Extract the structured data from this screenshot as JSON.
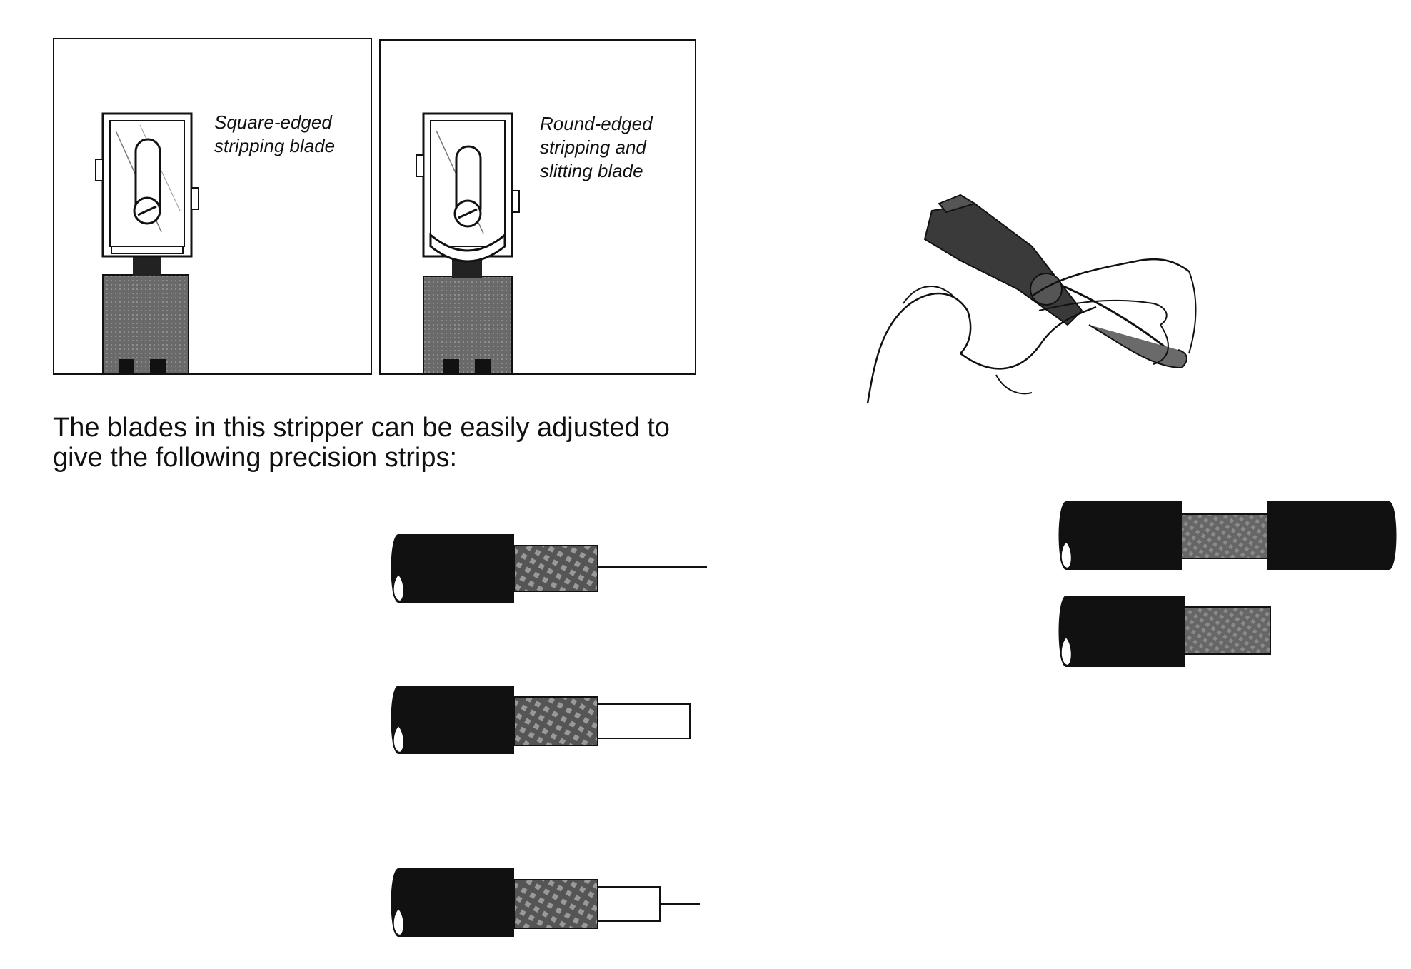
{
  "blade_panels": [
    {
      "caption": "Square-edged\nstripping blade",
      "blade_edge": "square"
    },
    {
      "caption": "Round-edged\nstripping and\nslitting blade",
      "blade_edge": "round"
    }
  ],
  "intro_text": "The blades in this stripper can be easily adjusted to give the following precision strips:",
  "strip_types": [
    "jacket-shield-conductor",
    "jacket-shield-dielectric",
    "jacket-shield-dielectric-conductor",
    "jacket-window-jacket",
    "jacket-shield"
  ],
  "colors": {
    "ink": "#111111",
    "block_gray": "#6a6a6a",
    "braid_gray": "#8a8a8a",
    "paper": "#ffffff"
  }
}
